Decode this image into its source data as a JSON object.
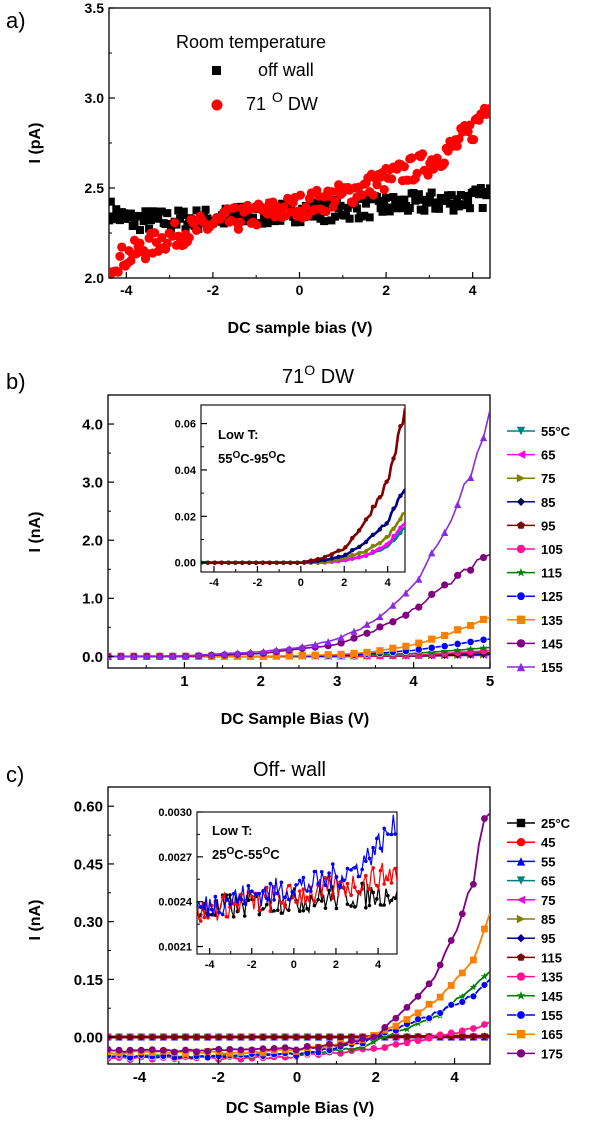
{
  "chart_data": [
    {
      "panel": "a)",
      "type": "scatter",
      "title": "",
      "xlabel": "DC sample bias (V)",
      "ylabel": "I (pA)",
      "xlim": [
        -4.4,
        4.4
      ],
      "ylim": [
        2.0,
        3.5
      ],
      "xticks": [
        "-4",
        "-2",
        "0",
        "2",
        "4"
      ],
      "yticks": [
        "2.0",
        "2.5",
        "3.0",
        "3.5"
      ],
      "legend_title": "Room temperature",
      "legend_position": "top-left",
      "grid": false,
      "series": [
        {
          "name": "off wall",
          "marker": "square",
          "color": "#000000",
          "x": [
            -4.4,
            -4.0,
            -3.0,
            -2.0,
            -1.0,
            0.0,
            1.0,
            2.0,
            3.0,
            4.0,
            4.4
          ],
          "y": [
            2.38,
            2.32,
            2.32,
            2.33,
            2.35,
            2.37,
            2.38,
            2.4,
            2.42,
            2.44,
            2.45
          ]
        },
        {
          "name": "71 º DW",
          "legend_label": "71",
          "legend_sup": "O",
          "legend_suffix": " DW",
          "marker": "circle",
          "color": "#ff0000",
          "x": [
            -4.4,
            -4.0,
            -3.0,
            -2.0,
            -1.0,
            0.0,
            1.0,
            2.0,
            3.0,
            3.5,
            4.0,
            4.4
          ],
          "y": [
            2.08,
            2.12,
            2.23,
            2.3,
            2.35,
            2.4,
            2.46,
            2.55,
            2.64,
            2.72,
            2.82,
            3.0
          ]
        }
      ]
    },
    {
      "panel": "b)",
      "type": "line",
      "title": "71",
      "title_sup": "O",
      "title_suffix": " DW",
      "xlabel": "DC Sample Bias (V)",
      "ylabel": "I (nA)",
      "xlim": [
        0,
        5
      ],
      "ylim": [
        -0.2,
        4.5
      ],
      "xticks": [
        "1",
        "2",
        "3",
        "4",
        "5"
      ],
      "yticks": [
        "0.0",
        "1.0",
        "2.0",
        "3.0",
        "4.0"
      ],
      "legend_position": "right-outside",
      "legend_unit": "°C",
      "series": [
        {
          "name": "55",
          "marker": "triangle-down",
          "color": "#008080",
          "x": [
            0,
            1,
            2,
            3,
            4,
            5
          ],
          "y": [
            0,
            0,
            0,
            0,
            0.005,
            0.02
          ]
        },
        {
          "name": "65",
          "marker": "triangle-left",
          "color": "#ff00ff",
          "x": [
            0,
            1,
            2,
            3,
            4,
            5
          ],
          "y": [
            0,
            0,
            0,
            0,
            0.005,
            0.02
          ]
        },
        {
          "name": "75",
          "marker": "triangle-right",
          "color": "#808000",
          "x": [
            0,
            1,
            2,
            3,
            4,
            5
          ],
          "y": [
            0,
            0,
            0,
            0,
            0.006,
            0.025
          ]
        },
        {
          "name": "85",
          "marker": "diamond",
          "color": "#000080",
          "x": [
            0,
            1,
            2,
            3,
            4,
            5
          ],
          "y": [
            0,
            0,
            0,
            0,
            0.008,
            0.035
          ]
        },
        {
          "name": "95",
          "marker": "pentagon",
          "color": "#800000",
          "x": [
            0,
            1,
            2,
            3,
            4,
            5
          ],
          "y": [
            0,
            0,
            0,
            0,
            0.015,
            0.065
          ]
        },
        {
          "name": "105",
          "marker": "circle",
          "color": "#ff1493",
          "x": [
            0,
            1,
            2,
            3,
            4,
            5
          ],
          "y": [
            0,
            0,
            0,
            0,
            0.02,
            0.1
          ]
        },
        {
          "name": "115",
          "marker": "star",
          "color": "#008000",
          "x": [
            0,
            1,
            2,
            3,
            4,
            5
          ],
          "y": [
            0,
            0,
            0,
            0.01,
            0.05,
            0.15
          ]
        },
        {
          "name": "125",
          "marker": "circle-half",
          "color": "#0000ff",
          "x": [
            0,
            1,
            2,
            3,
            4,
            5
          ],
          "y": [
            0,
            0,
            0,
            0.01,
            0.1,
            0.3
          ]
        },
        {
          "name": "135",
          "marker": "square",
          "color": "#ff8000",
          "x": [
            0,
            1,
            2,
            3,
            3.5,
            4,
            4.5,
            5
          ],
          "y": [
            0,
            0,
            0,
            0.03,
            0.08,
            0.2,
            0.4,
            0.7
          ]
        },
        {
          "name": "145",
          "marker": "circle",
          "color": "#800080",
          "x": [
            0,
            1,
            2,
            3,
            3.5,
            4,
            4.5,
            5
          ],
          "y": [
            0,
            0,
            0.05,
            0.2,
            0.45,
            0.8,
            1.3,
            1.8
          ]
        },
        {
          "name": "155",
          "marker": "triangle-up",
          "color": "#8a2be2",
          "x": [
            0,
            1,
            2,
            2.5,
            3,
            3.5,
            4,
            4.5,
            5
          ],
          "y": [
            0,
            0.01,
            0.08,
            0.15,
            0.3,
            0.6,
            1.2,
            2.3,
            4.1
          ]
        }
      ],
      "inset": {
        "annotation_lines": [
          "Low T:",
          "55ºC-95ºC"
        ],
        "annotation_parts": [
          {
            "a": "55",
            "b": "O",
            "c": "C-95",
            "d": "O",
            "e": "C"
          }
        ],
        "xlim": [
          -4.6,
          4.8
        ],
        "ylim": [
          -0.004,
          0.068
        ],
        "xticks": [
          "-4",
          "-2",
          "0",
          "2",
          "4"
        ],
        "yticks": [
          "0.00",
          "0.02",
          "0.04",
          "0.06"
        ],
        "series": [
          {
            "name": "55",
            "color": "#008080",
            "x": [
              -4.6,
              0,
              1,
              2,
              3,
              4,
              4.8
            ],
            "y": [
              0,
              0,
              0,
              0.001,
              0.003,
              0.007,
              0.015
            ]
          },
          {
            "name": "65",
            "color": "#ff00ff",
            "x": [
              -4.6,
              0,
              1,
              2,
              3,
              4,
              4.8
            ],
            "y": [
              0,
              0,
              0,
              0.001,
              0.003,
              0.008,
              0.017
            ]
          },
          {
            "name": "75",
            "color": "#808000",
            "x": [
              -4.6,
              0,
              1,
              2,
              3,
              4,
              4.8
            ],
            "y": [
              0,
              0,
              0,
              0.002,
              0.005,
              0.011,
              0.022
            ]
          },
          {
            "name": "85",
            "color": "#000080",
            "x": [
              -4.6,
              0,
              1,
              2,
              3,
              4,
              4.8
            ],
            "y": [
              0,
              0,
              0.001,
              0.003,
              0.009,
              0.018,
              0.033
            ]
          },
          {
            "name": "95",
            "color": "#800000",
            "x": [
              -4.6,
              0,
              1,
              2,
              3,
              4,
              4.8
            ],
            "y": [
              0,
              0,
              0.002,
              0.006,
              0.018,
              0.035,
              0.065
            ]
          }
        ]
      }
    },
    {
      "panel": "c)",
      "type": "line",
      "title": "Off- wall",
      "xlabel": "DC Sample Bias (V)",
      "ylabel": "I (nA)",
      "xlim": [
        -4.8,
        4.9
      ],
      "ylim": [
        -0.07,
        0.65
      ],
      "xticks": [
        "-4",
        "-2",
        "0",
        "2",
        "4"
      ],
      "yticks": [
        "0.00",
        "0.15",
        "0.30",
        "0.45",
        "0.60"
      ],
      "legend_position": "right-outside",
      "legend_unit": "°C",
      "series": [
        {
          "name": "25",
          "marker": "square",
          "color": "#000000",
          "x": [
            -4.8,
            0,
            4.9
          ],
          "y": [
            0,
            0,
            0
          ]
        },
        {
          "name": "45",
          "marker": "circle",
          "color": "#ff0000",
          "x": [
            -4.8,
            0,
            4.9
          ],
          "y": [
            0,
            0,
            0
          ]
        },
        {
          "name": "55",
          "marker": "triangle-up",
          "color": "#0000ff",
          "x": [
            -4.8,
            0,
            4.9
          ],
          "y": [
            0,
            0,
            0
          ]
        },
        {
          "name": "65",
          "marker": "triangle-down",
          "color": "#008080",
          "x": [
            -4.8,
            0,
            4.9
          ],
          "y": [
            0,
            0,
            0.001
          ]
        },
        {
          "name": "75",
          "marker": "triangle-left",
          "color": "#ff00ff",
          "x": [
            -4.8,
            0,
            4.9
          ],
          "y": [
            0,
            0,
            0.001
          ]
        },
        {
          "name": "85",
          "marker": "triangle-right",
          "color": "#808000",
          "x": [
            -4.8,
            0,
            4.9
          ],
          "y": [
            0,
            0,
            0.002
          ]
        },
        {
          "name": "95",
          "marker": "diamond",
          "color": "#000080",
          "x": [
            -4.8,
            0,
            4.9
          ],
          "y": [
            0,
            0,
            0.002
          ]
        },
        {
          "name": "115",
          "marker": "pentagon",
          "color": "#800000",
          "x": [
            -4.8,
            0,
            4.9
          ],
          "y": [
            0,
            0,
            0.003
          ]
        },
        {
          "name": "135",
          "marker": "circle",
          "color": "#ff1493",
          "x": [
            -4.8,
            -2,
            0,
            2,
            3,
            4,
            4.9
          ],
          "y": [
            -0.055,
            -0.055,
            -0.05,
            -0.03,
            -0.01,
            0.01,
            0.035
          ]
        },
        {
          "name": "145",
          "marker": "star",
          "color": "#008000",
          "x": [
            -4.8,
            -2,
            0,
            1.5,
            2.5,
            3.5,
            4.5,
            4.9
          ],
          "y": [
            -0.05,
            -0.05,
            -0.045,
            -0.03,
            0.01,
            0.05,
            0.13,
            0.17
          ]
        },
        {
          "name": "155",
          "marker": "circle-half",
          "color": "#0000ff",
          "x": [
            -4.8,
            -2,
            0,
            1.5,
            2.5,
            3.5,
            4.5,
            4.9
          ],
          "y": [
            -0.05,
            -0.05,
            -0.045,
            -0.02,
            0.02,
            0.06,
            0.11,
            0.15
          ]
        },
        {
          "name": "165",
          "marker": "square",
          "color": "#ff8000",
          "x": [
            -4.8,
            -2,
            0,
            1.5,
            2.5,
            3.5,
            4.5,
            4.9
          ],
          "y": [
            -0.04,
            -0.04,
            -0.035,
            -0.01,
            0.03,
            0.09,
            0.2,
            0.31
          ]
        },
        {
          "name": "175",
          "marker": "circle",
          "color": "#800080",
          "x": [
            -4.8,
            -2,
            0,
            1.0,
            2.0,
            2.5,
            3.0,
            3.5,
            4.0,
            4.5,
            4.8,
            4.9
          ],
          "y": [
            -0.035,
            -0.035,
            -0.03,
            -0.02,
            0.0,
            0.05,
            0.1,
            0.16,
            0.26,
            0.42,
            0.59,
            0.6
          ]
        }
      ],
      "inset": {
        "annotation_lines": [
          "Low T:",
          "25ºC-55ºC"
        ],
        "annotation_parts": [
          {
            "a": "25",
            "b": "O",
            "c": "C-55",
            "d": "O",
            "e": "C"
          }
        ],
        "xlim": [
          -4.6,
          4.9
        ],
        "ylim": [
          0.00205,
          0.003
        ],
        "xticks": [
          "-4",
          "-2",
          "0",
          "2",
          "4"
        ],
        "yticks": [
          "0.0021",
          "0.0024",
          "0.0027",
          "0.0030"
        ],
        "series": [
          {
            "name": "25",
            "color": "#000000",
            "x": [
              -4.6,
              -3,
              -1,
              1,
              3,
              4.9
            ],
            "y": [
              0.00232,
              0.00237,
              0.0024,
              0.00242,
              0.00244,
              0.00246
            ]
          },
          {
            "name": "45",
            "color": "#ff0000",
            "x": [
              -4.6,
              -3,
              -1,
              1,
              3,
              4.9
            ],
            "y": [
              0.00233,
              0.00238,
              0.00242,
              0.00246,
              0.00252,
              0.0026
            ]
          },
          {
            "name": "55",
            "color": "#0000ff",
            "x": [
              -4.6,
              -3,
              -1,
              1,
              3,
              4.9
            ],
            "y": [
              0.00235,
              0.00242,
              0.00247,
              0.00252,
              0.00262,
              0.00292
            ]
          }
        ]
      }
    }
  ]
}
